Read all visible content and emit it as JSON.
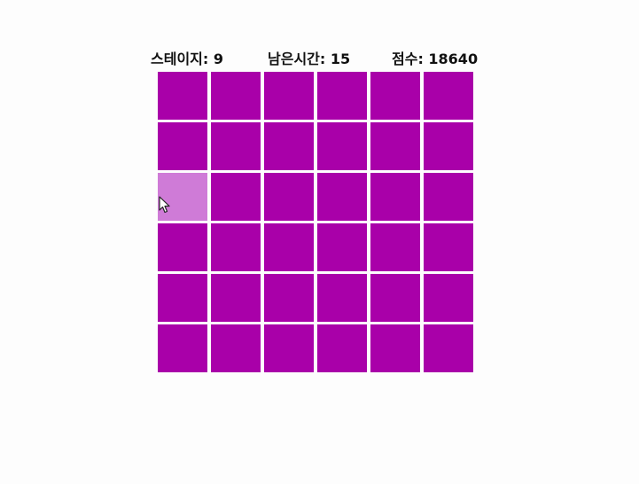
{
  "hud": {
    "stage": "스테이지: 9",
    "time": "남은시간: 15",
    "score": "점수: 18640"
  },
  "board": {
    "rows": 6,
    "cols": 6,
    "tile_color": "#a900a9",
    "highlight_color": "#cf7bd7",
    "highlighted": [
      {
        "row": 2,
        "col": 0
      }
    ]
  },
  "cursor": {
    "icon": "mouse-pointer-icon"
  }
}
